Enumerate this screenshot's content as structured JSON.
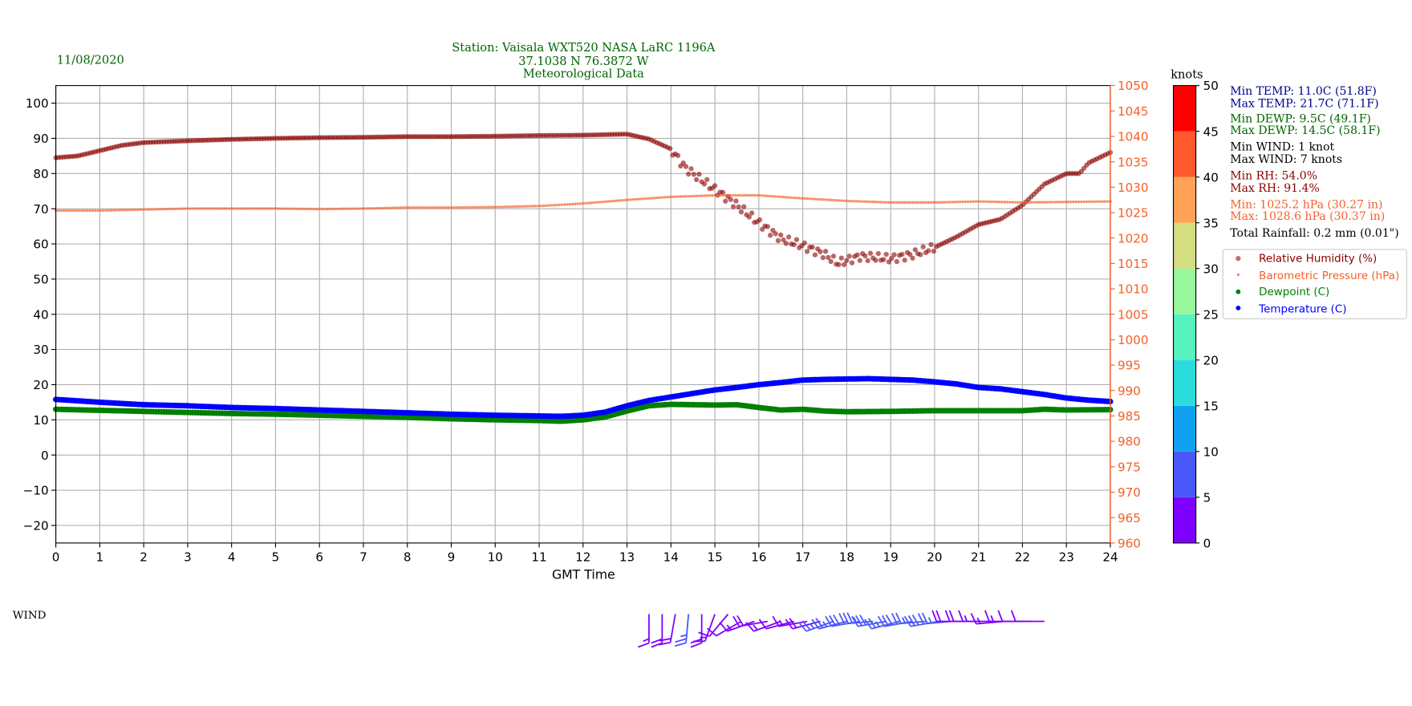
{
  "header": {
    "date": "11/08/2020",
    "title_line1": "Station:  Vaisala WXT520  NASA LaRC 1196A",
    "title_line2": "37.1038 N 76.3872 W",
    "title_line3": "Meteorological Data"
  },
  "stats": {
    "min_temp": "Min TEMP: 11.0C (51.8F)",
    "max_temp": "Max TEMP: 21.7C (71.1F)",
    "min_dewp": "Min DEWP: 9.5C (49.1F)",
    "max_dewp": "Max DEWP: 14.5C (58.1F)",
    "min_wind": "Min WIND: 1 knot",
    "max_wind": "Max WIND: 7 knots",
    "min_rh": "Min RH: 54.0%",
    "max_rh": "Max RH: 91.4%",
    "min_pres": "Min: 1025.2 hPa (30.27 in)",
    "max_pres": "Max: 1028.6 hPa (30.37 in)",
    "rainfall": "Total Rainfall: 0.2 mm (0.01\")"
  },
  "wind_label": "WIND",
  "colorbar": {
    "label": "knots",
    "ticks": [
      "0",
      "5",
      "10",
      "15",
      "20",
      "25",
      "30",
      "35",
      "40",
      "45",
      "50"
    ],
    "colors": [
      "#8000ff",
      "#4a58fb",
      "#10a2f0",
      "#2adcdc",
      "#56f2c0",
      "#98f89c",
      "#d4dd80",
      "#ffa256",
      "#ff5a2e",
      "#ff0000"
    ]
  },
  "chart_data": {
    "type": "scatter",
    "xlabel": "GMT Time",
    "xlim": [
      0,
      24
    ],
    "ylim_left": [
      -25,
      105
    ],
    "ylim_right": [
      960,
      1050
    ],
    "xticks": [
      "0",
      "1",
      "2",
      "3",
      "4",
      "5",
      "6",
      "7",
      "8",
      "9",
      "10",
      "11",
      "12",
      "13",
      "14",
      "15",
      "16",
      "17",
      "18",
      "19",
      "20",
      "21",
      "22",
      "23",
      "24"
    ],
    "yticks_left": [
      "−20",
      "−10",
      "0",
      "10",
      "20",
      "30",
      "40",
      "50",
      "60",
      "70",
      "80",
      "90",
      "100"
    ],
    "yticks_right": [
      "960",
      "965",
      "970",
      "975",
      "980",
      "985",
      "990",
      "995",
      "1000",
      "1005",
      "1010",
      "1015",
      "1020",
      "1025",
      "1030",
      "1035",
      "1040",
      "1045",
      "1050"
    ],
    "grid": true,
    "legend_placement": "right",
    "series": [
      {
        "name": "Relative Humidity (%)",
        "axis": "left",
        "color": "#8b0000",
        "x": [
          0,
          0.5,
          1,
          1.5,
          2,
          3,
          4,
          5,
          6,
          7,
          8,
          9,
          10,
          11,
          12,
          13,
          13.5,
          14,
          14.3,
          14.6,
          15,
          15.5,
          16,
          16.5,
          17,
          17.5,
          17.8,
          18.3,
          19,
          19.5,
          20,
          20.5,
          21,
          21.5,
          22,
          22.5,
          23,
          23.3,
          23.5,
          24
        ],
        "y": [
          84.5,
          85,
          86.5,
          88,
          88.8,
          89.3,
          89.7,
          90,
          90.2,
          90.3,
          90.5,
          90.5,
          90.6,
          90.8,
          90.9,
          91.2,
          89.8,
          87,
          82,
          79,
          75.5,
          71,
          66,
          61.5,
          59.5,
          57,
          54.5,
          56.5,
          55.8,
          57,
          59,
          62,
          65.5,
          67,
          71,
          77,
          80,
          80,
          83,
          86
        ]
      },
      {
        "name": "Barometric Pressure (hPa)",
        "axis": "right",
        "color": "#f4602a",
        "x": [
          0,
          1,
          2,
          3,
          4,
          5,
          6,
          7,
          8,
          9,
          10,
          11,
          12,
          13,
          14,
          15,
          16,
          17,
          18,
          19,
          20,
          21,
          22,
          23,
          24
        ],
        "y": [
          1025.4,
          1025.4,
          1025.6,
          1025.8,
          1025.8,
          1025.8,
          1025.7,
          1025.8,
          1026,
          1026,
          1026.1,
          1026.3,
          1026.8,
          1027.5,
          1028.1,
          1028.4,
          1028.4,
          1027.8,
          1027.3,
          1027,
          1027,
          1027.2,
          1027,
          1027.1,
          1027.2
        ]
      },
      {
        "name": "Dewpoint (C)",
        "axis": "left",
        "color": "#008000",
        "x": [
          0,
          1,
          2,
          3,
          4,
          5,
          6,
          7,
          8,
          9,
          10,
          11,
          11.5,
          12,
          12.5,
          13,
          13.5,
          14,
          15,
          15.5,
          16,
          16.5,
          17,
          17.5,
          18,
          19,
          20,
          21,
          22,
          22.5,
          23,
          24
        ],
        "y": [
          13,
          12.7,
          12.4,
          12.1,
          11.8,
          11.6,
          11.3,
          11,
          10.7,
          10.3,
          10,
          9.8,
          9.6,
          10,
          10.8,
          12.5,
          14,
          14.4,
          14.2,
          14.3,
          13.5,
          12.8,
          13,
          12.5,
          12.3,
          12.4,
          12.6,
          12.6,
          12.6,
          13,
          12.8,
          12.9
        ]
      },
      {
        "name": "Temperature (C)",
        "axis": "left",
        "color": "#0000ff",
        "x": [
          0,
          1,
          2,
          3,
          4,
          5,
          6,
          7,
          8,
          9,
          10,
          11,
          11.5,
          12,
          12.5,
          13,
          13.5,
          14,
          14.5,
          15,
          15.5,
          16,
          16.5,
          17,
          17.5,
          18,
          18.5,
          19,
          19.5,
          20,
          20.5,
          21,
          21.5,
          22,
          22.5,
          23,
          23.5,
          24
        ],
        "y": [
          15.8,
          15,
          14.3,
          14,
          13.5,
          13.2,
          12.8,
          12.4,
          12,
          11.6,
          11.3,
          11.1,
          11,
          11.3,
          12.2,
          14,
          15.5,
          16.5,
          17.5,
          18.5,
          19.2,
          20,
          20.6,
          21.3,
          21.5,
          21.6,
          21.7,
          21.5,
          21.3,
          20.8,
          20.2,
          19.2,
          18.8,
          18,
          17.2,
          16.2,
          15.6,
          15.2
        ]
      }
    ],
    "wind": {
      "x": [
        13.5,
        13.8,
        14.1,
        14.4,
        14.7,
        15,
        15.3,
        15.6,
        15.9,
        16.2,
        16.5,
        16.8,
        17.1,
        17.4,
        17.7,
        18,
        18.3,
        18.6,
        18.9,
        19.2,
        19.5,
        19.8,
        20.1,
        20.4,
        20.7,
        21,
        21.3,
        21.6,
        21.9,
        22.2,
        22.5
      ],
      "speed_knots": [
        3,
        4,
        4,
        5,
        4,
        3,
        2,
        2,
        3,
        4,
        3,
        2,
        3,
        4,
        5,
        5,
        6,
        7,
        6,
        5,
        6,
        5,
        6,
        5,
        4,
        4,
        3,
        3,
        3,
        2,
        2
      ],
      "direction_deg": [
        180,
        180,
        190,
        185,
        180,
        200,
        220,
        240,
        250,
        260,
        250,
        255,
        260,
        255,
        250,
        255,
        260,
        265,
        260,
        255,
        260,
        265,
        260,
        265,
        270,
        270,
        270,
        265,
        270,
        270,
        270
      ]
    }
  }
}
